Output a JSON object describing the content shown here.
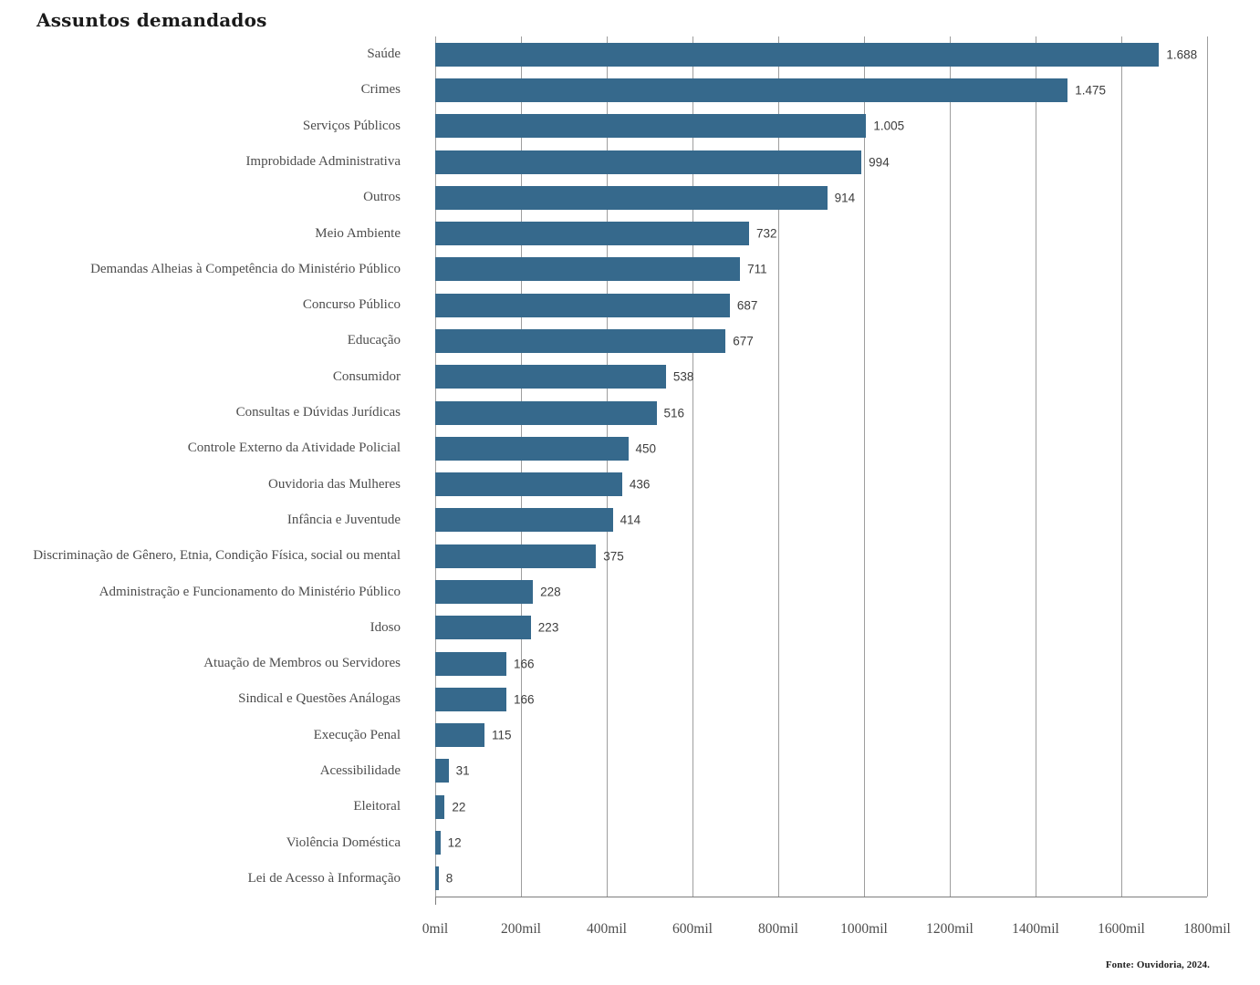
{
  "title": "Assuntos demandados",
  "source_note": "Fonte: Ouvidoria, 2024.",
  "colors": {
    "bar": "#36698C",
    "gridline": "#9e9e9e",
    "axis_line": "#7d7d7d",
    "title_text": "#1a1a1a",
    "category_text": "#4d4d4d",
    "value_text": "#3d3d3d",
    "tick_text": "#4d4d4d",
    "source_text": "#1f1f1f"
  },
  "chart_data": {
    "type": "bar",
    "orientation": "horizontal",
    "title": "Assuntos demandados",
    "legend": "none",
    "grid": "vertical-only",
    "categories": [
      "Saúde",
      "Crimes",
      "Serviços Públicos",
      "Improbidade Administrativa",
      "Outros",
      "Meio Ambiente",
      "Demandas Alheias à Competência do Ministério Público",
      "Concurso Público",
      "Educação",
      "Consumidor",
      "Consultas e Dúvidas Jurídicas",
      "Controle Externo da Atividade Policial",
      "Ouvidoria das Mulheres",
      "Infância e Juventude",
      "Discriminação de Gênero, Etnia, Condição Física, social ou mental",
      "Administração e Funcionamento do Ministério Público",
      "Idoso",
      "Atuação de Membros ou Servidores",
      "Sindical e Questões Análogas",
      "Execução Penal",
      "Acessibilidade",
      "Eleitoral",
      "Violência Doméstica",
      "Lei de Acesso à Informação"
    ],
    "values": [
      1688,
      1475,
      1005,
      994,
      914,
      732,
      711,
      687,
      677,
      538,
      516,
      450,
      436,
      414,
      375,
      228,
      223,
      166,
      166,
      115,
      31,
      22,
      12,
      8
    ],
    "value_labels": [
      "1.688",
      "1.475",
      "1.005",
      "994",
      "914",
      "732",
      "711",
      "687",
      "677",
      "538",
      "516",
      "450",
      "436",
      "414",
      "375",
      "228",
      "223",
      "166",
      "166",
      "115",
      "31",
      "22",
      "12",
      "8"
    ],
    "x_axis": {
      "min": 0,
      "max": 1800,
      "tick_step": 200,
      "tick_values": [
        0,
        200,
        400,
        600,
        800,
        1000,
        1200,
        1400,
        1600,
        1800
      ],
      "tick_labels": [
        "0mil",
        "200mil",
        "400mil",
        "600mil",
        "800mil",
        "1000mil",
        "1200mil",
        "1400mil",
        "1600mil",
        "1800mil"
      ],
      "unit": "mil"
    },
    "source": "Fonte: Ouvidoria, 2024."
  }
}
